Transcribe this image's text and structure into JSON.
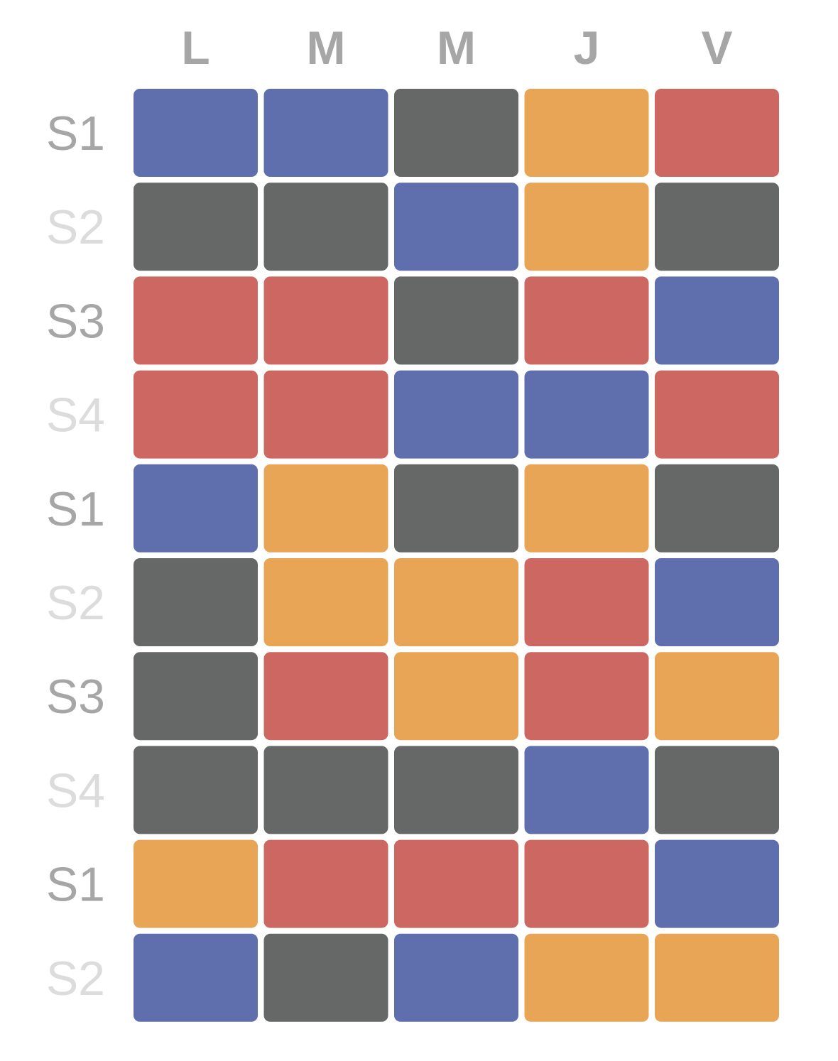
{
  "chart_data": {
    "type": "heatmap",
    "columns": [
      "L",
      "M",
      "M",
      "J",
      "V"
    ],
    "rows": [
      "S1",
      "S2",
      "S3",
      "S4",
      "S1",
      "S2",
      "S3",
      "S4",
      "S1",
      "S2"
    ],
    "categories": [
      "blue",
      "gray",
      "orange",
      "red"
    ],
    "cells": [
      [
        "blue",
        "blue",
        "gray",
        "orange",
        "red"
      ],
      [
        "gray",
        "gray",
        "blue",
        "orange",
        "gray"
      ],
      [
        "red",
        "red",
        "gray",
        "red",
        "blue"
      ],
      [
        "red",
        "red",
        "blue",
        "blue",
        "red"
      ],
      [
        "blue",
        "orange",
        "gray",
        "orange",
        "gray"
      ],
      [
        "gray",
        "orange",
        "orange",
        "red",
        "blue"
      ],
      [
        "gray",
        "red",
        "orange",
        "red",
        "orange"
      ],
      [
        "gray",
        "gray",
        "gray",
        "blue",
        "gray"
      ],
      [
        "orange",
        "red",
        "red",
        "red",
        "blue"
      ],
      [
        "blue",
        "gray",
        "blue",
        "orange",
        "orange"
      ]
    ],
    "colors": {
      "blue": "#5f6ead",
      "gray": "#666867",
      "orange": "#e9a556",
      "red": "#cc6861"
    },
    "label_colors": {
      "columns": "#a6a6a6",
      "row_odd": "#a6a6a6",
      "row_even": "#dcdcdc"
    }
  }
}
